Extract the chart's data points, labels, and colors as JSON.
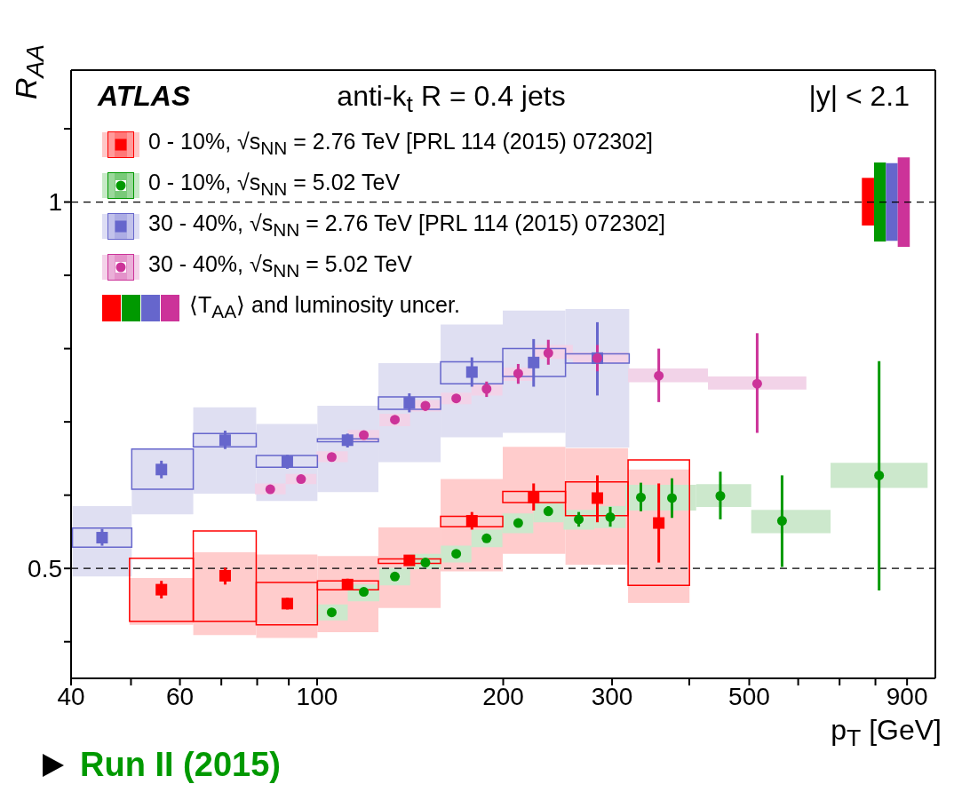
{
  "chart_data": {
    "type": "scatter",
    "title": "anti-k$_{t}$ R = 0.4 jets",
    "xlabel": "p$_{T}$ [GeV]",
    "ylabel": "R$_{AA}$",
    "annotations": [
      "ATLAS",
      "|y| < 2.1",
      "Run II (2015)"
    ],
    "log": "x",
    "xlim": [
      40,
      1000
    ],
    "ylim": [
      0.35,
      1.18
    ],
    "xticks": [
      40,
      {
        "value": 50,
        "label": null
      },
      60,
      {
        "value": 70,
        "label": null
      },
      {
        "value": 80,
        "label": null
      },
      {
        "value": 90,
        "label": null
      },
      100,
      200,
      300,
      {
        "value": 400,
        "label": null
      },
      500,
      {
        "value": 600,
        "label": null
      },
      {
        "value": 700,
        "label": null
      },
      {
        "value": 800,
        "label": null
      },
      900
    ],
    "yticks": [
      {
        "value": 0.4,
        "label": null
      },
      0.5,
      {
        "value": 0.6,
        "label": null
      },
      {
        "value": 0.7,
        "label": null
      },
      {
        "value": 0.8,
        "label": null
      },
      {
        "value": 0.9,
        "label": null
      },
      1,
      {
        "value": 1.1,
        "label": null
      }
    ],
    "legend": "top left",
    "ref_lines": [
      {
        "axis": "y",
        "value": 1,
        "color": "#000000",
        "line_style": "dashed"
      },
      {
        "axis": "y",
        "value": 0.5,
        "color": "#000000",
        "line_style": "dashed"
      }
    ],
    "series": [
      {
        "type": "bar",
        "color": "#ffcccc",
        "x": [
          56,
          71,
          89.5,
          112,
          141,
          178,
          224,
          284,
          357
        ],
        "base": [
          0.423,
          0.409,
          0.405,
          0.413,
          0.446,
          0.496,
          0.52,
          0.505,
          0.453
        ],
        "values": [
          0.064,
          0.113,
          0.114,
          0.104,
          0.11,
          0.126,
          0.146,
          0.159,
          0.182
        ]
      },
      {
        "type": "bar",
        "color": "#dfdff2",
        "x": [
          44.9,
          56,
          71,
          89.5,
          112,
          141,
          178,
          224,
          284
        ],
        "base": [
          0.489,
          0.574,
          0.602,
          0.592,
          0.604,
          0.645,
          0.679,
          0.685,
          0.665
        ],
        "values": [
          0.096,
          0.089,
          0.118,
          0.105,
          0.118,
          0.135,
          0.154,
          0.167,
          0.189
        ]
      },
      {
        "type": "bar",
        "color": "#cce8cc",
        "x": [
          105.6,
          119,
          133.6,
          149.7,
          167.9,
          188,
          211.5,
          236.6,
          265,
          298,
          334,
          375,
          449,
          565,
          811
        ],
        "base": [
          0.429,
          0.455,
          0.477,
          0.499,
          0.508,
          0.529,
          0.548,
          0.563,
          0.553,
          0.555,
          0.579,
          0.579,
          0.584,
          0.548,
          0.61
        ],
        "values": [
          0.022,
          0.023,
          0.024,
          0.021,
          0.023,
          0.024,
          0.027,
          0.028,
          0.027,
          0.03,
          0.035,
          0.035,
          0.031,
          0.032,
          0.034
        ]
      },
      {
        "type": "bar",
        "color": "#f2d3e8",
        "x": [
          84,
          94.2,
          105.6,
          119,
          133.6,
          149.7,
          167.9,
          188,
          211.5,
          236.6,
          284,
          357,
          515
        ],
        "base": [
          0.601,
          0.615,
          0.645,
          0.673,
          0.694,
          0.714,
          0.724,
          0.736,
          0.756,
          0.786,
          0.78,
          0.754,
          0.744
        ],
        "values": [
          0.015,
          0.014,
          0.015,
          0.016,
          0.017,
          0.016,
          0.016,
          0.016,
          0.018,
          0.019,
          0.015,
          0.019,
          0.018
        ]
      },
      {
        "type": "bar",
        "color": "#ff0000",
        "line_style": "solid",
        "x": [
          56,
          71,
          89.5,
          112,
          141,
          178,
          224,
          284,
          357
        ],
        "base": [
          0.428,
          0.428,
          0.423,
          0.471,
          0.507,
          0.557,
          0.59,
          0.572,
          0.477
        ],
        "values": [
          0.086,
          0.123,
          0.058,
          0.012,
          0.006,
          0.014,
          0.015,
          0.046,
          0.171
        ]
      },
      {
        "type": "bar",
        "color": "#6666cc",
        "line_style": "solid",
        "x": [
          44.9,
          56,
          71,
          89.5,
          112,
          141,
          178,
          224,
          284
        ],
        "base": [
          0.529,
          0.608,
          0.666,
          0.638,
          0.673,
          0.717,
          0.752,
          0.762,
          0.78
        ],
        "values": [
          0.026,
          0.055,
          0.018,
          0.016,
          0.004,
          0.017,
          0.03,
          0.038,
          0.013
        ]
      },
      {
        "name": "0 - 10%, √s$_{NN}$ = 2.76 TeV [PRL 114 (2015) 072302]",
        "color": "#ff0000",
        "marker": "square",
        "x": [
          56,
          71,
          89.5,
          112,
          141,
          178,
          224,
          284,
          357
        ],
        "values": [
          0.471,
          0.49,
          0.452,
          0.478,
          0.511,
          0.565,
          0.597,
          0.596,
          0.562
        ],
        "errors": [
          [
            0.459,
            0.483
          ],
          [
            0.478,
            0.501
          ],
          [
            0.444,
            0.46
          ],
          [
            0.47,
            0.486
          ],
          [
            0.504,
            0.518
          ],
          [
            0.553,
            0.577
          ],
          [
            0.579,
            0.616
          ],
          [
            0.563,
            0.627
          ],
          [
            0.508,
            0.616
          ]
        ]
      },
      {
        "name": "0 - 10%, √s$_{NN}$ = 5.02 TeV",
        "color": "#009900",
        "marker": "circle",
        "x": [
          105.6,
          119,
          133.6,
          149.7,
          167.9,
          188,
          211.5,
          236.6,
          265,
          298,
          334,
          375,
          449,
          565,
          811
        ],
        "values": [
          0.44,
          0.468,
          0.489,
          0.508,
          0.52,
          0.541,
          0.562,
          0.578,
          0.567,
          0.57,
          0.597,
          0.596,
          0.599,
          0.565,
          0.627
        ],
        "errors": [
          null,
          null,
          null,
          null,
          null,
          null,
          null,
          [
            0.572,
            0.585
          ],
          [
            0.557,
            0.577
          ],
          [
            0.557,
            0.584
          ],
          [
            0.578,
            0.617
          ],
          [
            0.569,
            0.623
          ],
          [
            0.567,
            0.632
          ],
          [
            0.502,
            0.627
          ],
          [
            0.47,
            0.783
          ]
        ]
      },
      {
        "name": "30 - 40%, √s$_{NN}$ = 2.76 TeV [PRL 114 (2015) 072302]",
        "color": "#6666cc",
        "marker": "square",
        "x": [
          44.9,
          56,
          71,
          89.5,
          112,
          141,
          178,
          224,
          284
        ],
        "values": [
          0.542,
          0.635,
          0.675,
          0.646,
          0.675,
          0.726,
          0.768,
          0.781,
          0.787
        ],
        "errors": [
          [
            0.531,
            0.554
          ],
          [
            0.623,
            0.647
          ],
          [
            0.663,
            0.688
          ],
          [
            0.636,
            0.655
          ],
          [
            0.665,
            0.684
          ],
          [
            0.713,
            0.739
          ],
          [
            0.748,
            0.788
          ],
          [
            0.748,
            0.813
          ],
          [
            0.736,
            0.836
          ]
        ]
      },
      {
        "name": "30 - 40%, √s$_{NN}$ = 5.02 TeV",
        "color": "#cc3399",
        "marker": "circle",
        "x": [
          84,
          94.2,
          105.6,
          119,
          133.6,
          149.7,
          167.9,
          188,
          211.5,
          236.6,
          284,
          357,
          515
        ],
        "values": [
          0.608,
          0.622,
          0.652,
          0.682,
          0.703,
          0.722,
          0.732,
          0.745,
          0.766,
          0.794,
          0.787,
          0.763,
          0.752
        ],
        "errors": [
          null,
          null,
          null,
          null,
          null,
          [
            0.715,
            0.728
          ],
          null,
          [
            0.734,
            0.755
          ],
          [
            0.752,
            0.779
          ],
          [
            0.778,
            0.812
          ],
          [
            0.769,
            0.805
          ],
          [
            0.727,
            0.8
          ],
          [
            0.685,
            0.821
          ]
        ]
      },
      {
        "type": "bar",
        "name": "⟨T$_{AA}$⟩ and luminosity uncer.",
        "colors": [
          "#ff0000",
          "#009900",
          "#6666cc",
          "#cc3399"
        ],
        "x": [
          778,
          814,
          850,
          889
        ],
        "base": [
          0.968,
          0.946,
          0.947,
          0.939
        ],
        "values": [
          0.065,
          0.108,
          0.106,
          0.122
        ]
      }
    ]
  }
}
